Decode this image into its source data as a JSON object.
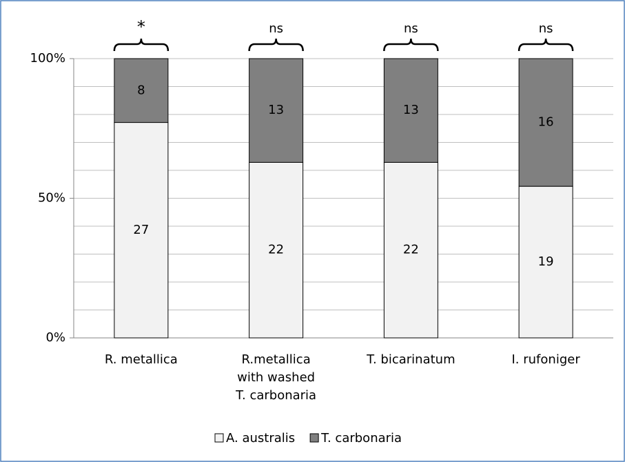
{
  "chart_data": {
    "type": "bar",
    "stacking": "percent",
    "categories": [
      "R. metallica",
      "R.metallica\nwith washed\nT. carbonaria",
      "T. bicarinatum",
      "I. rufoniger"
    ],
    "annotations": [
      "*",
      "ns",
      "ns",
      "ns"
    ],
    "series": [
      {
        "name": "A. australis",
        "color": "#f2f2f2",
        "values": [
          27,
          22,
          22,
          19
        ]
      },
      {
        "name": "T. carbonaria",
        "color": "#808080",
        "values": [
          8,
          13,
          13,
          16
        ]
      }
    ],
    "ylim": [
      0,
      100
    ],
    "yticks": [
      {
        "value": 0,
        "label": "0%"
      },
      {
        "value": 50,
        "label": "50%"
      },
      {
        "value": 100,
        "label": "100%"
      }
    ],
    "minor_yticks": [
      10,
      20,
      30,
      40,
      60,
      70,
      80,
      90
    ],
    "grid": true,
    "legend": "bottom"
  }
}
